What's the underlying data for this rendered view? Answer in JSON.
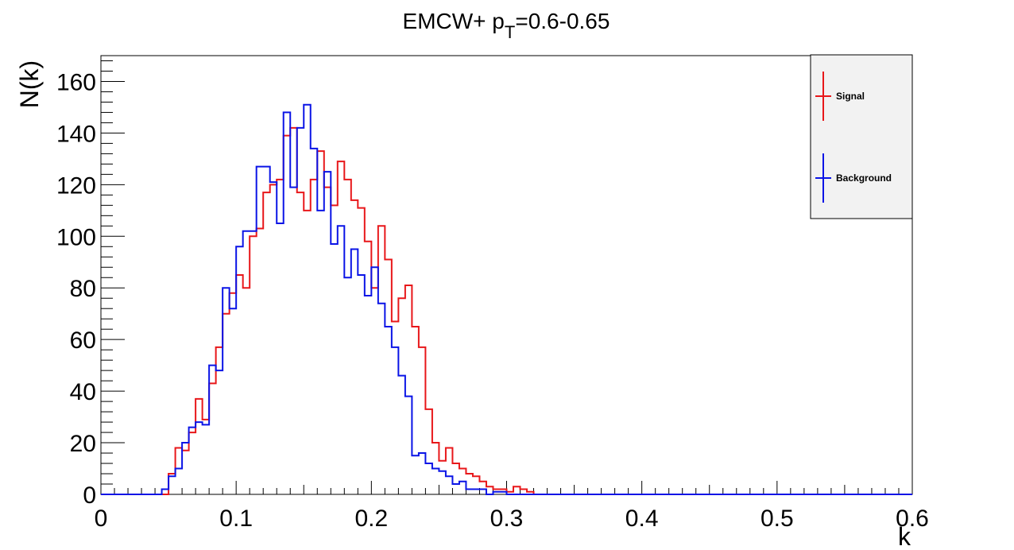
{
  "chart_data": {
    "type": "histogram",
    "title_main": "EMCW+ p",
    "title_sub": "T",
    "title_rest": "=0.6-0.65",
    "xlabel": "k",
    "ylabel": "N(k)",
    "xlim": [
      0,
      0.6
    ],
    "ylim": [
      0,
      170
    ],
    "x_ticks": [
      "0",
      "0.1",
      "0.2",
      "0.3",
      "0.4",
      "0.5",
      "0.6"
    ],
    "y_ticks": [
      "0",
      "20",
      "40",
      "60",
      "80",
      "100",
      "120",
      "140",
      "160"
    ],
    "bin_width": 0.005,
    "grid": false,
    "legend_position": "top-right",
    "series": [
      {
        "name": "Signal",
        "color": "#e8171a",
        "values": [
          0,
          0,
          0,
          0,
          0,
          0,
          0,
          0,
          0,
          0,
          8,
          18,
          17,
          24,
          37,
          29,
          43,
          57,
          70,
          78,
          85,
          80,
          100,
          103,
          117,
          120,
          122,
          139,
          142,
          117,
          110,
          122,
          133,
          119,
          112,
          129,
          122,
          114,
          111,
          98,
          80,
          104,
          91,
          67,
          76,
          81,
          65,
          57,
          33,
          20,
          13,
          18,
          12,
          10,
          8,
          7,
          5,
          3,
          2,
          2,
          1,
          3,
          2,
          1,
          0,
          0,
          0,
          0,
          0,
          0,
          0,
          0,
          0,
          0,
          0,
          0,
          0,
          0,
          0,
          0,
          0,
          0,
          0,
          0,
          0,
          0,
          0,
          0,
          0,
          0,
          0,
          0,
          0,
          0,
          0,
          0,
          0,
          0,
          0,
          0,
          0,
          0,
          0,
          0,
          0,
          0,
          0,
          0,
          0,
          0,
          0,
          0,
          0,
          0,
          0,
          0,
          0,
          0,
          0,
          0
        ]
      },
      {
        "name": "Background",
        "color": "#0a14e6",
        "values": [
          0,
          0,
          0,
          0,
          0,
          0,
          0,
          0,
          0,
          2,
          7,
          10,
          20,
          26,
          28,
          27,
          50,
          48,
          80,
          72,
          96,
          102,
          102,
          127,
          127,
          121,
          105,
          148,
          119,
          142,
          151,
          134,
          110,
          125,
          97,
          104,
          84,
          95,
          85,
          77,
          88,
          74,
          65,
          57,
          46,
          38,
          15,
          16,
          12,
          10,
          9,
          7,
          4,
          5,
          2,
          2,
          2,
          0,
          1,
          1,
          0,
          0,
          0,
          0,
          0,
          0,
          0,
          0,
          0,
          0,
          0,
          0,
          0,
          0,
          0,
          0,
          0,
          0,
          0,
          0,
          0,
          0,
          0,
          0,
          0,
          0,
          0,
          0,
          0,
          0,
          0,
          0,
          0,
          0,
          0,
          0,
          0,
          0,
          0,
          0,
          0,
          0,
          0,
          0,
          0,
          0,
          0,
          0,
          0,
          0,
          0,
          0,
          0,
          0,
          0,
          0,
          0,
          0,
          0,
          0
        ]
      }
    ]
  }
}
